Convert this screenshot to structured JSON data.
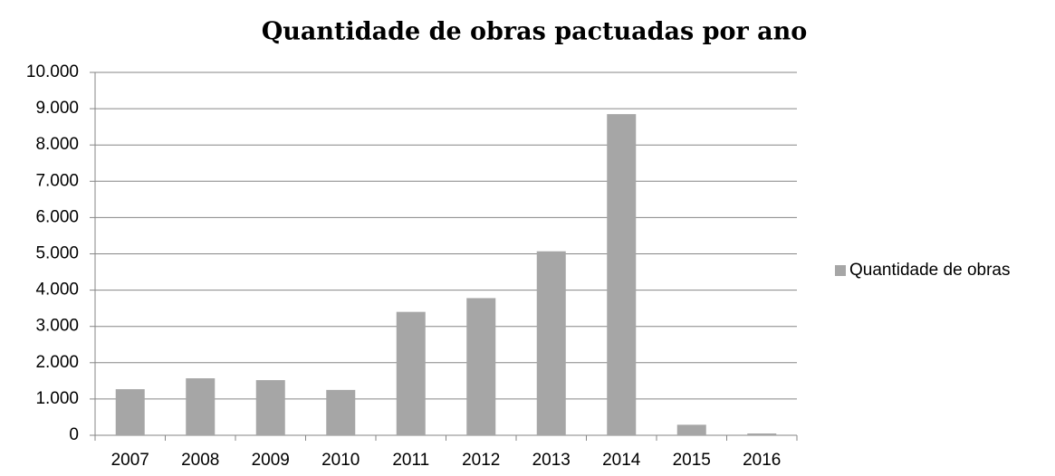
{
  "chart_data": {
    "type": "bar",
    "title": "Quantidade de obras pactuadas por ano",
    "categories": [
      "2007",
      "2008",
      "2009",
      "2010",
      "2011",
      "2012",
      "2013",
      "2014",
      "2015",
      "2016"
    ],
    "series": [
      {
        "name": "Quantidade de obras",
        "color": "#a6a6a6",
        "values": [
          1270,
          1570,
          1520,
          1250,
          3400,
          3780,
          5070,
          8850,
          290,
          50
        ]
      }
    ],
    "ylim": [
      0,
      10000
    ],
    "yticks": [
      0,
      {
        "value": 1000,
        "label": "1.000"
      },
      {
        "value": 2000,
        "label": "2.000"
      },
      {
        "value": 3000,
        "label": "3.000"
      },
      {
        "value": 4000,
        "label": "4.000"
      },
      {
        "value": 5000,
        "label": "5.000"
      },
      {
        "value": 6000,
        "label": "6.000"
      },
      {
        "value": 7000,
        "label": "7.000"
      },
      {
        "value": 8000,
        "label": "8.000"
      },
      {
        "value": 9000,
        "label": "9.000"
      },
      {
        "value": 10000,
        "label": "10.000"
      }
    ],
    "grid": true,
    "legend": "right"
  }
}
